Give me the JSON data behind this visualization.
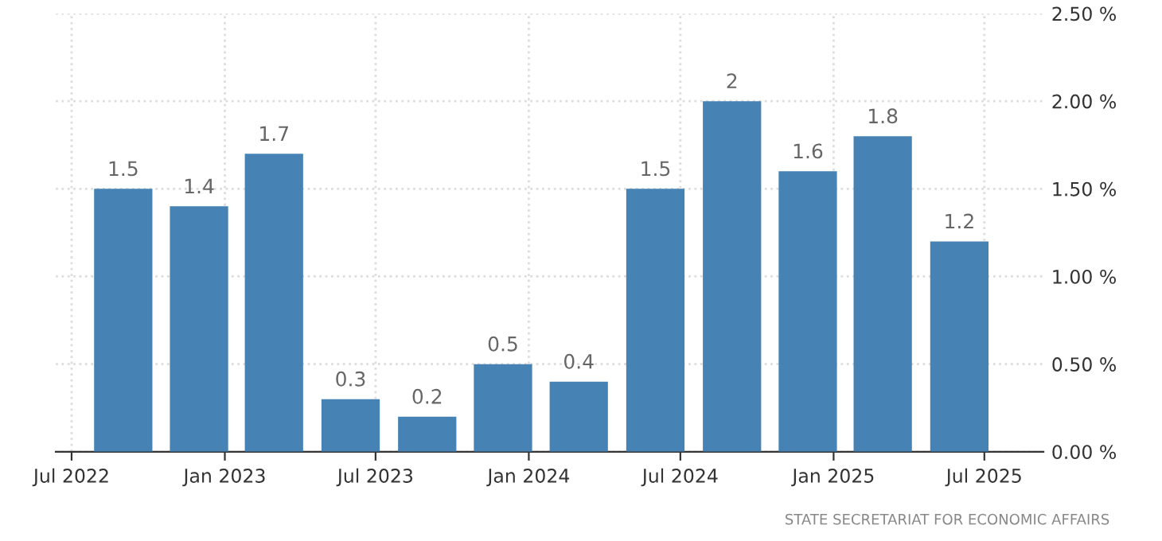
{
  "chart_data": {
    "type": "bar",
    "x": [
      "2022-09",
      "2022-12",
      "2023-03",
      "2023-06",
      "2023-09",
      "2023-12",
      "2024-03",
      "2024-06",
      "2024-09",
      "2024-12",
      "2025-03",
      "2025-06"
    ],
    "values": [
      1.5,
      1.4,
      1.7,
      0.3,
      0.2,
      0.5,
      0.4,
      1.5,
      2,
      1.6,
      1.8,
      1.2
    ],
    "color": "#4682b4",
    "data_labels": true,
    "xlim": [
      "2022-06-12",
      "2025-09-10"
    ],
    "xticks": [
      {
        "value": "2022-07",
        "label": "Jul 2022"
      },
      {
        "value": "2023-01",
        "label": "Jan 2023"
      },
      {
        "value": "2023-07",
        "label": "Jul 2023"
      },
      {
        "value": "2024-01",
        "label": "Jan 2024"
      },
      {
        "value": "2024-07",
        "label": "Jul 2024"
      },
      {
        "value": "2025-01",
        "label": "Jan 2025"
      },
      {
        "value": "2025-07",
        "label": "Jul 2025"
      }
    ],
    "ylim": [
      0,
      2.5
    ],
    "yticks": [
      {
        "value": 0,
        "label": "0.00 %"
      },
      {
        "value": 0.5,
        "label": "0.50 %"
      },
      {
        "value": 1,
        "label": "1.00 %"
      },
      {
        "value": 1.5,
        "label": "1.50 %"
      },
      {
        "value": 2,
        "label": "2.00 %"
      },
      {
        "value": 2.5,
        "label": "2.50 %"
      }
    ],
    "grid": true,
    "annotations": [
      "STATE SECRETARIAT FOR ECONOMIC AFFAIRS"
    ]
  }
}
